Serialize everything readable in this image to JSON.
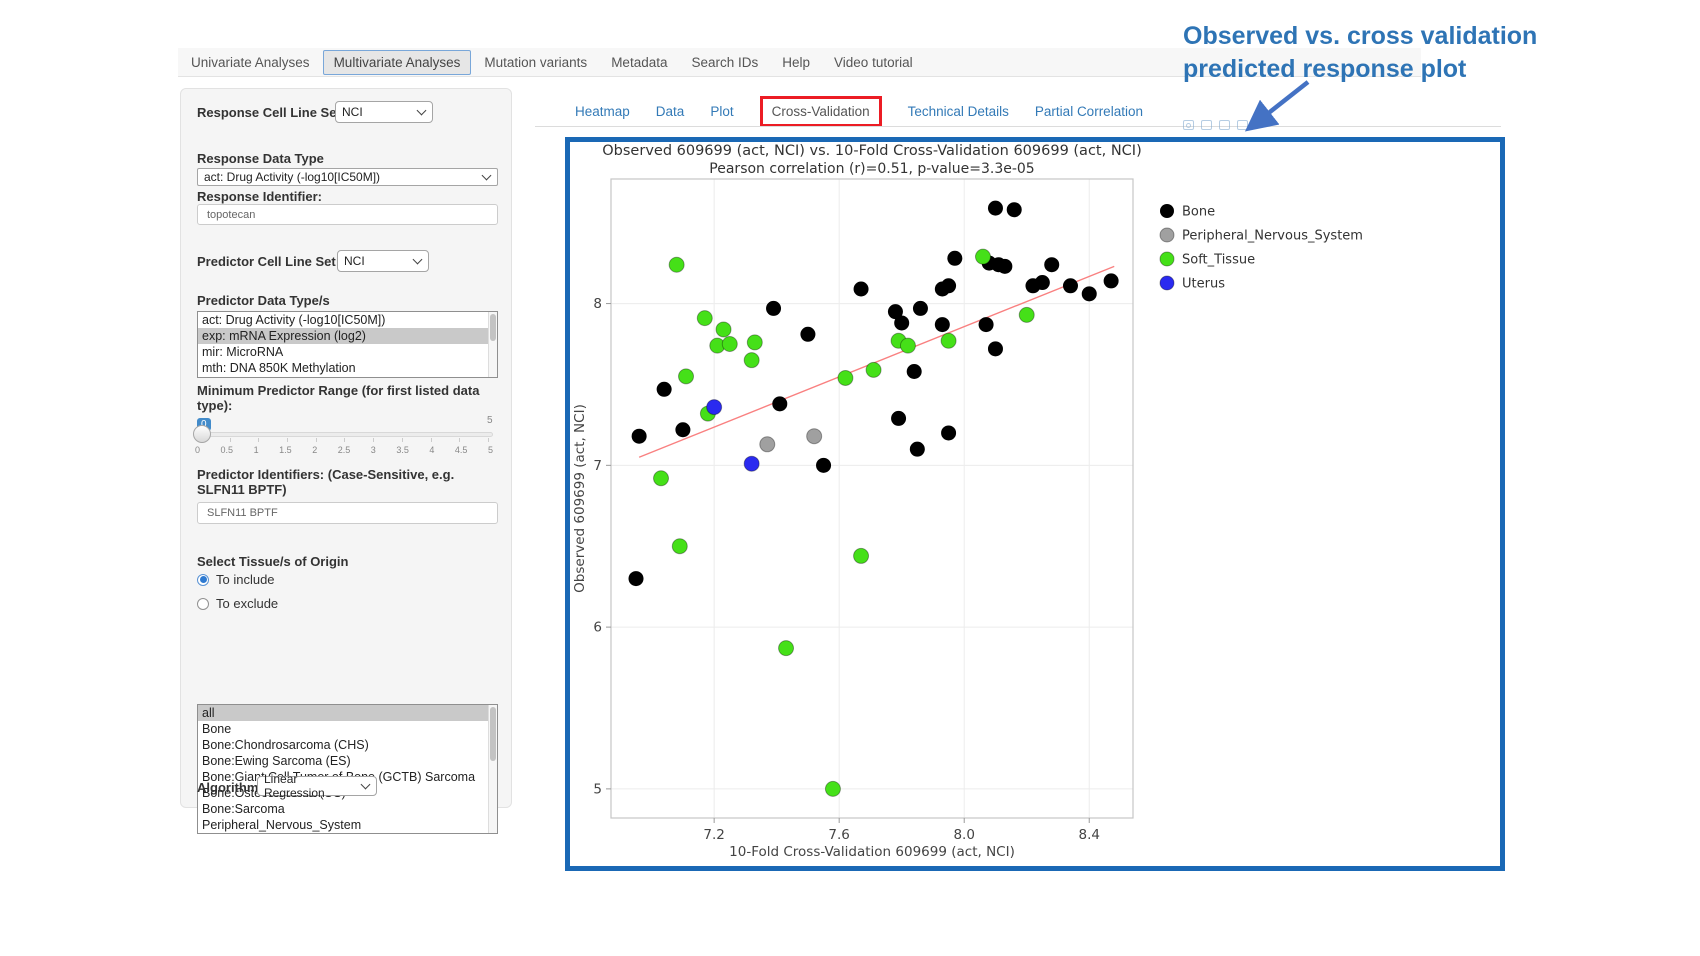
{
  "nav": {
    "tabs": [
      {
        "label": "Univariate Analyses",
        "active": false
      },
      {
        "label": "Multivariate Analyses",
        "active": true
      },
      {
        "label": "Mutation variants",
        "active": false
      },
      {
        "label": "Metadata",
        "active": false
      },
      {
        "label": "Search IDs",
        "active": false
      },
      {
        "label": "Help",
        "active": false
      },
      {
        "label": "Video tutorial",
        "active": false
      }
    ]
  },
  "annotation": {
    "line1": "Observed vs. cross validation",
    "line2": "predicted response plot",
    "color": "#2e74b5",
    "arrow_color": "#4472c4"
  },
  "sidebar": {
    "response_cell_line_set": {
      "label": "Response Cell Line Set",
      "value": "NCI"
    },
    "response_data_type": {
      "label": "Response Data Type",
      "value": "act: Drug Activity (-log10[IC50M])"
    },
    "response_identifier": {
      "label": "Response Identifier:",
      "value": "topotecan"
    },
    "predictor_cell_line_set": {
      "label": "Predictor Cell Line Set",
      "value": "NCI"
    },
    "predictor_data_types": {
      "label": "Predictor Data Type/s",
      "options": [
        {
          "label": "act: Drug Activity (-log10[IC50M])",
          "selected": false
        },
        {
          "label": "exp: mRNA Expression (log2)",
          "selected": true
        },
        {
          "label": "mir: MicroRNA",
          "selected": false
        },
        {
          "label": "mth: DNA 850K Methylation",
          "selected": false
        }
      ]
    },
    "min_predictor_range": {
      "label": "Minimum Predictor Range (for first listed data type):",
      "value": "0",
      "max_label": "5",
      "ticks": [
        "0",
        "0.5",
        "1",
        "1.5",
        "2",
        "2.5",
        "3",
        "3.5",
        "4",
        "4.5",
        "5"
      ]
    },
    "predictor_identifiers": {
      "label": "Predictor Identifiers: (Case-Sensitive, e.g. SLFN11 BPTF)",
      "value": "SLFN11 BPTF"
    },
    "tissue_origin": {
      "label": "Select Tissue/s of Origin",
      "radios": [
        {
          "label": "To include",
          "selected": true
        },
        {
          "label": "To exclude",
          "selected": false
        }
      ],
      "options": [
        {
          "label": "all",
          "selected": true
        },
        {
          "label": "Bone",
          "selected": false
        },
        {
          "label": "Bone:Chondrosarcoma (CHS)",
          "selected": false
        },
        {
          "label": "Bone:Ewing Sarcoma (ES)",
          "selected": false
        },
        {
          "label": "Bone:Giant Cell Tumor of Bone (GCTB) Sarcoma",
          "selected": false
        },
        {
          "label": "Bone:Osteosarcoma (OS)",
          "selected": false
        },
        {
          "label": "Bone:Sarcoma",
          "selected": false
        },
        {
          "label": "Peripheral_Nervous_System",
          "selected": false
        }
      ]
    },
    "algorithm": {
      "label": "Algorithm",
      "value": "Linear Regression"
    }
  },
  "main": {
    "tabs": [
      {
        "label": "Heatmap",
        "active": false,
        "highlighted": false
      },
      {
        "label": "Data",
        "active": false,
        "highlighted": false
      },
      {
        "label": "Plot",
        "active": false,
        "highlighted": false
      },
      {
        "label": "Cross-Validation",
        "active": true,
        "highlighted": true
      },
      {
        "label": "Technical Details",
        "active": false,
        "highlighted": false
      },
      {
        "label": "Partial Correlation",
        "active": false,
        "highlighted": false
      }
    ],
    "modebar_icons": [
      "camera-icon",
      "zoom-in-icon",
      "pan-icon",
      "reset-axes-icon"
    ]
  },
  "chart_data": {
    "type": "scatter",
    "title": "Observed 609699 (act, NCI) vs. 10-Fold Cross-Validation 609699 (act, NCI)",
    "subtitle": "Pearson correlation (r)=0.51, p-value=3.3e-05",
    "xlabel": "10-Fold Cross-Validation 609699 (act, NCI)",
    "ylabel": "Observed 609699 (act, NCI)",
    "xlim": [
      6.87,
      8.54
    ],
    "ylim": [
      4.82,
      8.77
    ],
    "xticks": [
      [
        7.2,
        "7.2"
      ],
      [
        7.6,
        "7.6"
      ],
      [
        8.0,
        "8.0"
      ],
      [
        8.4,
        "8.4"
      ]
    ],
    "yticks": [
      [
        5,
        "5"
      ],
      [
        6,
        "6"
      ],
      [
        7,
        "7"
      ],
      [
        8,
        "8"
      ]
    ],
    "grid": true,
    "legend_position": "right",
    "trend_line": {
      "color": "#f98080",
      "x": [
        6.96,
        8.48
      ],
      "y": [
        7.05,
        8.23
      ]
    },
    "series": [
      {
        "name": "Bone",
        "color": "#000000",
        "points": [
          [
            8.1,
            8.59
          ],
          [
            8.16,
            8.58
          ],
          [
            7.97,
            8.28
          ],
          [
            8.08,
            8.25
          ],
          [
            8.11,
            8.24
          ],
          [
            8.13,
            8.23
          ],
          [
            8.28,
            8.24
          ],
          [
            8.34,
            8.11
          ],
          [
            8.4,
            8.06
          ],
          [
            8.47,
            8.14
          ],
          [
            7.67,
            8.09
          ],
          [
            7.93,
            8.09
          ],
          [
            7.95,
            8.11
          ],
          [
            8.22,
            8.11
          ],
          [
            8.25,
            8.13
          ],
          [
            7.39,
            7.97
          ],
          [
            7.78,
            7.95
          ],
          [
            7.8,
            7.88
          ],
          [
            7.86,
            7.97
          ],
          [
            7.93,
            7.87
          ],
          [
            8.07,
            7.87
          ],
          [
            7.5,
            7.81
          ],
          [
            8.1,
            7.72
          ],
          [
            7.84,
            7.58
          ],
          [
            7.04,
            7.47
          ],
          [
            7.41,
            7.38
          ],
          [
            7.79,
            7.29
          ],
          [
            7.1,
            7.22
          ],
          [
            6.96,
            7.18
          ],
          [
            7.95,
            7.2
          ],
          [
            7.85,
            7.1
          ],
          [
            7.55,
            7.0
          ],
          [
            6.95,
            6.3
          ]
        ]
      },
      {
        "name": "Peripheral_Nervous_System",
        "color": "#a0a0a0",
        "points": [
          [
            7.52,
            7.18
          ],
          [
            7.37,
            7.13
          ]
        ]
      },
      {
        "name": "Soft_Tissue",
        "color": "#45e018",
        "points": [
          [
            7.08,
            8.24
          ],
          [
            8.06,
            8.29
          ],
          [
            7.17,
            7.91
          ],
          [
            7.23,
            7.84
          ],
          [
            8.2,
            7.93
          ],
          [
            7.21,
            7.74
          ],
          [
            7.25,
            7.75
          ],
          [
            7.33,
            7.76
          ],
          [
            7.79,
            7.77
          ],
          [
            7.82,
            7.74
          ],
          [
            7.95,
            7.77
          ],
          [
            7.32,
            7.65
          ],
          [
            7.62,
            7.54
          ],
          [
            7.71,
            7.59
          ],
          [
            7.11,
            7.55
          ],
          [
            7.18,
            7.32
          ],
          [
            7.03,
            6.92
          ],
          [
            7.09,
            6.5
          ],
          [
            7.67,
            6.44
          ],
          [
            7.43,
            5.87
          ],
          [
            7.58,
            5.0
          ]
        ]
      },
      {
        "name": "Uterus",
        "color": "#2a2af0",
        "points": [
          [
            7.2,
            7.36
          ],
          [
            7.32,
            7.01
          ]
        ]
      }
    ]
  }
}
